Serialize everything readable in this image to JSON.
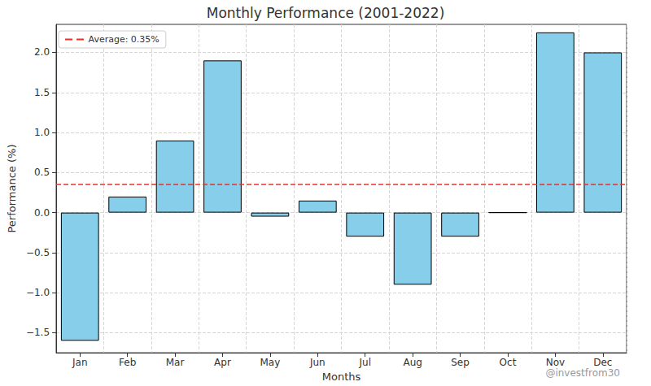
{
  "chart_data": {
    "type": "bar",
    "title": "Monthly Performance (2001-2022)",
    "x_label": "Months",
    "y_label": "Performance (%)",
    "categories": [
      "Jan",
      "Feb",
      "Mar",
      "Apr",
      "May",
      "Jun",
      "Jul",
      "Aug",
      "Sep",
      "Oct",
      "Nov",
      "Dec"
    ],
    "values": [
      -1.6,
      0.2,
      0.9,
      1.9,
      -0.05,
      0.15,
      -0.3,
      -0.9,
      -0.3,
      0.0,
      2.25,
      2.0
    ],
    "color": "#87ceeb",
    "ylim": [
      -1.75,
      2.35
    ],
    "yticks": [
      {
        "value": -1.5,
        "label": "−1.5"
      },
      {
        "value": -1.0,
        "label": "−1.0"
      },
      {
        "value": -0.5,
        "label": "−0.5"
      },
      {
        "value": 0.0,
        "label": "0.0"
      },
      {
        "value": 0.5,
        "label": "0.5"
      },
      {
        "value": 1.0,
        "label": "1.0"
      },
      {
        "value": 1.5,
        "label": "1.5"
      },
      {
        "value": 2.0,
        "label": "2.0"
      }
    ],
    "grid": true,
    "legend": "upper left",
    "reference_lines": [
      {
        "value": 0.35,
        "label": "Average: 0.35%",
        "color": "#e8312a",
        "line_style": "dashed"
      }
    ],
    "annotations": [
      {
        "text": "@investfrom30"
      }
    ]
  }
}
